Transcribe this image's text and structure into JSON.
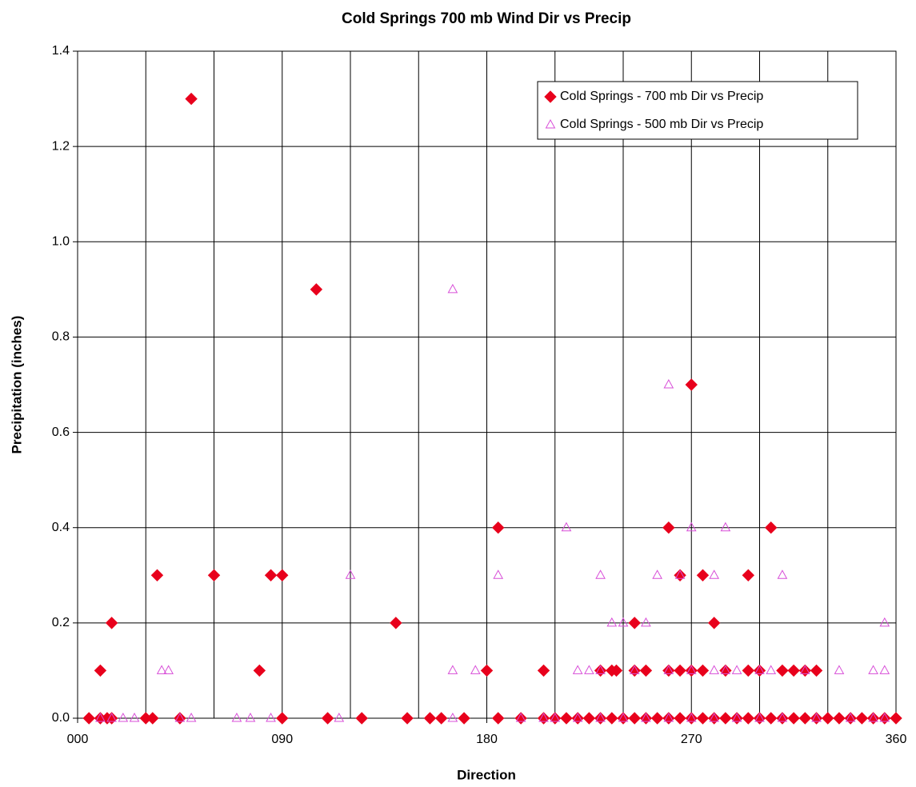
{
  "chart_data": {
    "type": "scatter",
    "title": "Cold Springs 700 mb Wind Dir vs Precip",
    "xlabel": "Direction",
    "ylabel": "Precipitation (inches)",
    "xlim": [
      0,
      360
    ],
    "xticks": [
      {
        "value": 0,
        "label": "000"
      },
      {
        "value": 90,
        "label": "090"
      },
      {
        "value": 180,
        "label": "180"
      },
      {
        "value": 270,
        "label": "270"
      },
      {
        "value": 360,
        "label": "360"
      }
    ],
    "xgrid": [
      0,
      30,
      60,
      90,
      120,
      150,
      180,
      210,
      240,
      270,
      300,
      330,
      360
    ],
    "ylim": [
      0,
      1.4
    ],
    "yticks": [
      {
        "value": 0,
        "label": "0.0"
      },
      0.2,
      0.4,
      0.6,
      0.8,
      {
        "value": 1,
        "label": "1.0"
      },
      1.2,
      1.4
    ],
    "grid": true,
    "legend": "upper right",
    "series": [
      {
        "name": "Cold Springs - 700 mb Dir vs Precip",
        "color": "#e8001c",
        "marker": "diamond",
        "x": [
          5,
          10,
          13,
          15,
          30,
          33,
          45,
          90,
          110,
          125,
          145,
          155,
          160,
          170,
          185,
          195,
          205,
          210,
          215,
          220,
          225,
          230,
          235,
          240,
          245,
          250,
          255,
          260,
          265,
          270,
          275,
          280,
          285,
          290,
          295,
          300,
          305,
          310,
          315,
          320,
          325,
          330,
          335,
          340,
          345,
          350,
          355,
          360,
          10,
          15,
          35,
          50,
          60,
          80,
          85,
          90,
          105,
          140,
          180,
          185,
          205,
          230,
          235,
          237,
          245,
          245,
          250,
          260,
          260,
          265,
          265,
          270,
          270,
          275,
          275,
          280,
          285,
          295,
          295,
          300,
          305,
          310,
          315,
          320,
          325
        ],
        "values": [
          0,
          0,
          0,
          0,
          0,
          0,
          0,
          0,
          0,
          0,
          0,
          0,
          0,
          0,
          0,
          0,
          0,
          0,
          0,
          0,
          0,
          0,
          0,
          0,
          0,
          0,
          0,
          0,
          0,
          0,
          0,
          0,
          0,
          0,
          0,
          0,
          0,
          0,
          0,
          0,
          0,
          0,
          0,
          0,
          0,
          0,
          0,
          0,
          0.1,
          0.2,
          0.3,
          1.3,
          0.3,
          0.1,
          0.3,
          0.3,
          0.9,
          0.2,
          0.1,
          0.4,
          0.1,
          0.1,
          0.1,
          0.1,
          0.2,
          0.1,
          0.1,
          0.4,
          0.1,
          0.3,
          0.1,
          0.7,
          0.1,
          0.3,
          0.1,
          0.2,
          0.1,
          0.3,
          0.1,
          0.1,
          0.4,
          0.1,
          0.1,
          0.1,
          0.1
        ]
      },
      {
        "name": "Cold Springs - 500 mb Dir vs Precip",
        "color": "#d84fd8",
        "marker": "triangle",
        "x": [
          10,
          15,
          20,
          25,
          45,
          50,
          70,
          76,
          85,
          115,
          165,
          195,
          205,
          210,
          220,
          230,
          240,
          250,
          260,
          270,
          280,
          290,
          300,
          310,
          325,
          340,
          350,
          355,
          37,
          40,
          120,
          165,
          165,
          175,
          185,
          215,
          220,
          225,
          230,
          230,
          235,
          240,
          245,
          250,
          255,
          260,
          260,
          265,
          270,
          270,
          280,
          280,
          285,
          285,
          290,
          300,
          305,
          310,
          320,
          335,
          350,
          355,
          355
        ],
        "values": [
          0,
          0,
          0,
          0,
          0,
          0,
          0,
          0,
          0,
          0,
          0,
          0,
          0,
          0,
          0,
          0,
          0,
          0,
          0,
          0,
          0,
          0,
          0,
          0,
          0,
          0,
          0,
          0,
          0.1,
          0.1,
          0.3,
          0.9,
          0.1,
          0.1,
          0.3,
          0.4,
          0.1,
          0.1,
          0.3,
          0.1,
          0.2,
          0.2,
          0.1,
          0.2,
          0.3,
          0.7,
          0.1,
          0.3,
          0.4,
          0.1,
          0.3,
          0.1,
          0.4,
          0.1,
          0.1,
          0.1,
          0.1,
          0.3,
          0.1,
          0.1,
          0.1,
          0.2,
          0.1
        ]
      }
    ]
  }
}
